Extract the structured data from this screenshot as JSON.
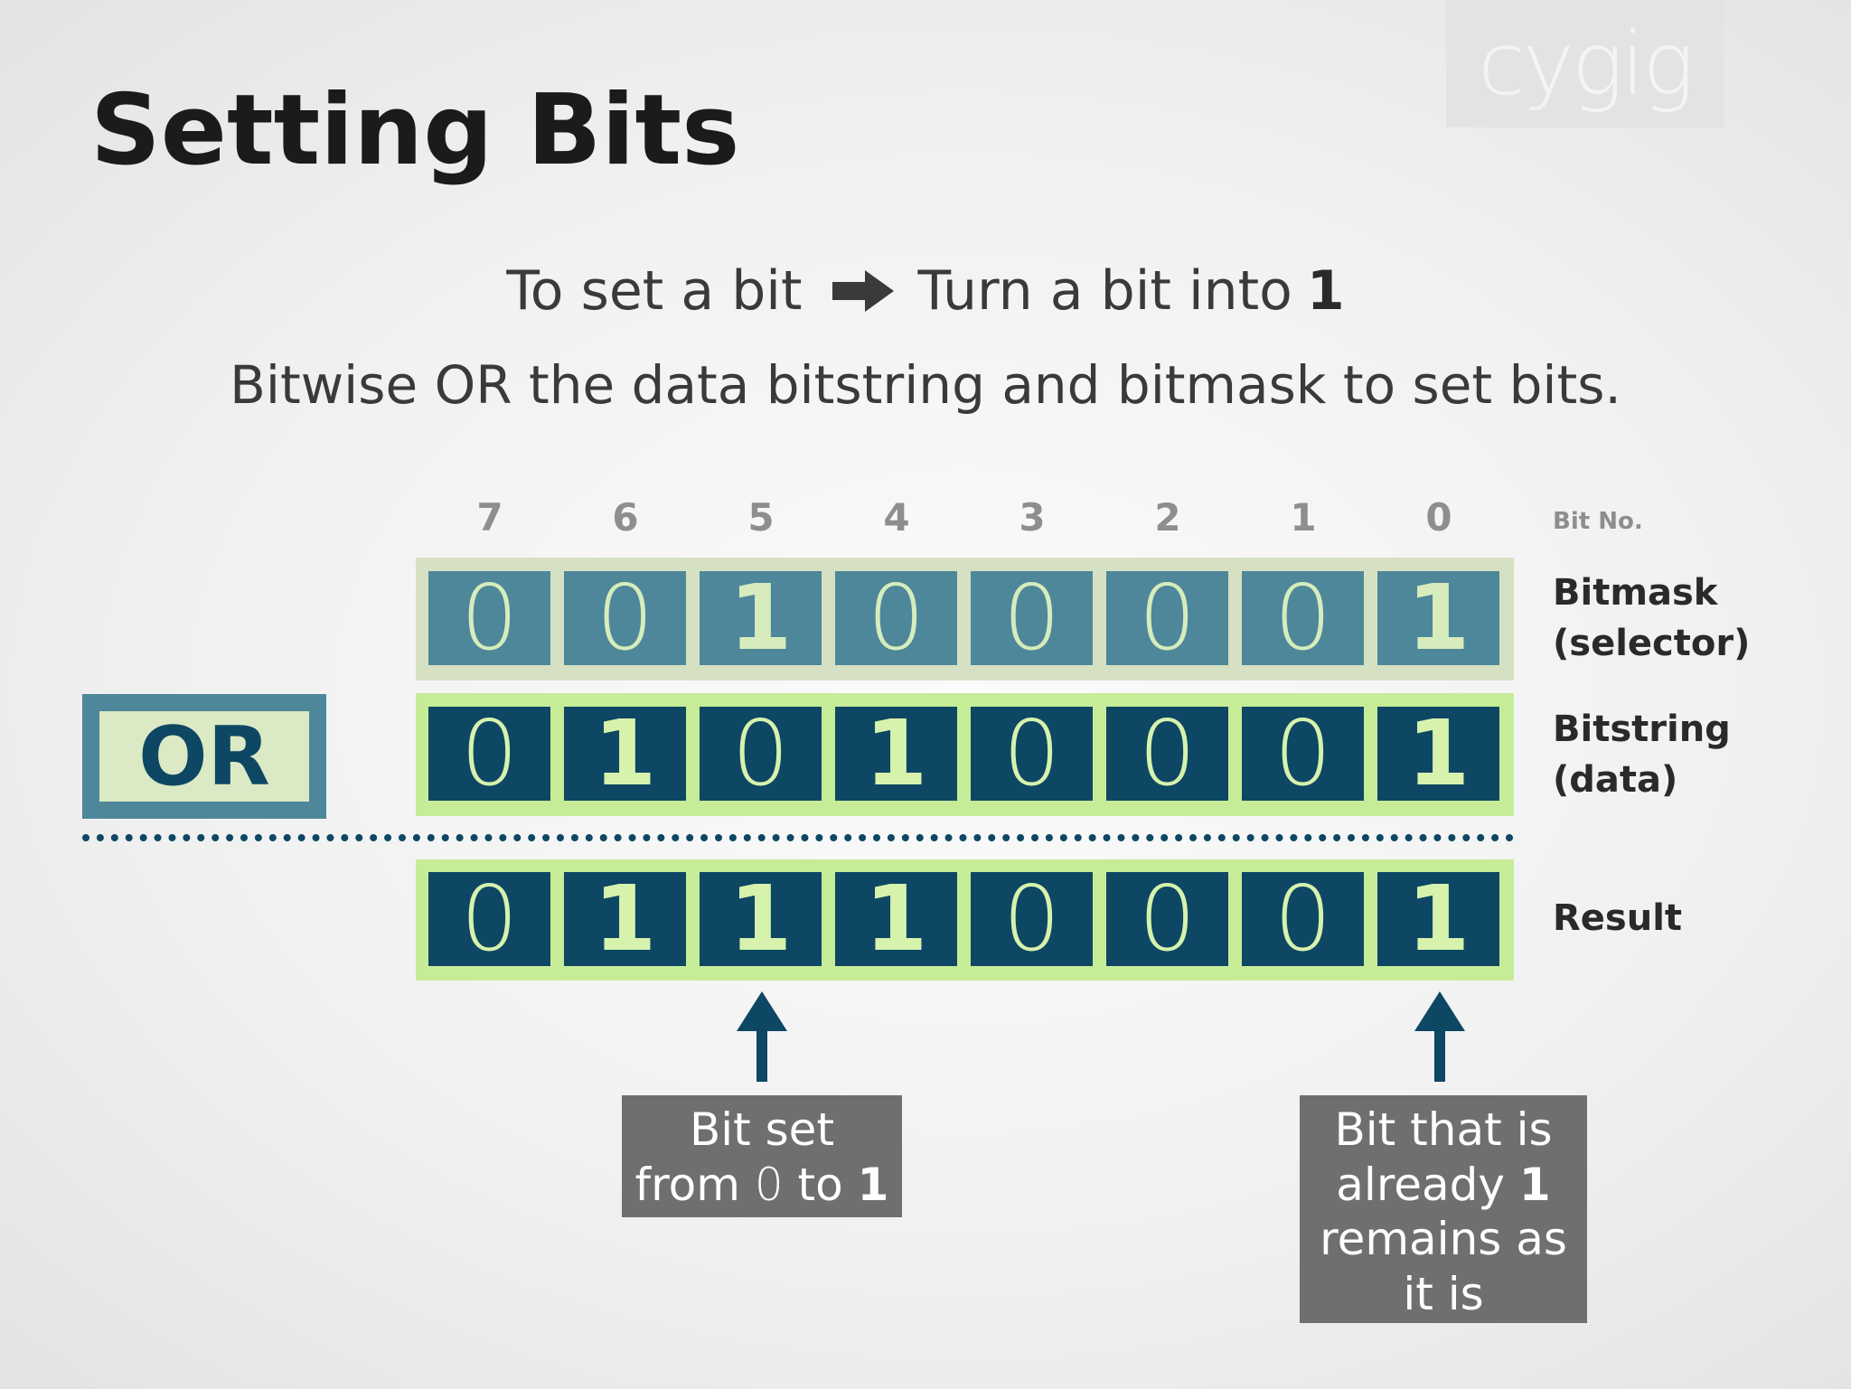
{
  "title": "Setting Bits",
  "logo_text": "cygig",
  "line1": {
    "left_text": "To set a bit",
    "right_text": "Turn a bit into",
    "right_emphasis": "1",
    "arrow_icon": "right-arrow-icon"
  },
  "line2": "Bitwise OR the data bitstring and bitmask to set bits.",
  "bit_numbers": [
    "7",
    "6",
    "5",
    "4",
    "3",
    "2",
    "1",
    "0"
  ],
  "bit_numbers_label": "Bit No.",
  "operator": "OR",
  "rows": {
    "mask": {
      "label_line1": "Bitmask",
      "label_line2": "(selector)",
      "bits": [
        "0",
        "0",
        "1",
        "0",
        "0",
        "0",
        "0",
        "1"
      ]
    },
    "data": {
      "label_line1": "Bitstring",
      "label_line2": "(data)",
      "bits": [
        "0",
        "1",
        "0",
        "1",
        "0",
        "0",
        "0",
        "1"
      ]
    },
    "result": {
      "label_line1": "Result",
      "bits": [
        "0",
        "1",
        "1",
        "1",
        "0",
        "0",
        "0",
        "1"
      ]
    }
  },
  "callouts": {
    "left": {
      "line1": "Bit set",
      "line2_pre": "from",
      "line2_zero": "0",
      "line2_mid": "to",
      "line2_one": "1"
    },
    "right": {
      "line1": "Bit that is",
      "line2_pre": "already",
      "line2_one": "1",
      "line3": "remains as",
      "line4": "it is"
    }
  },
  "colors": {
    "mask_cell": "#4e879a",
    "data_cell": "#0d4764",
    "mask_row_bg": "#d6e1c3",
    "data_row_bg": "#c6ec98",
    "callout_bg": "#6f6f6f"
  }
}
